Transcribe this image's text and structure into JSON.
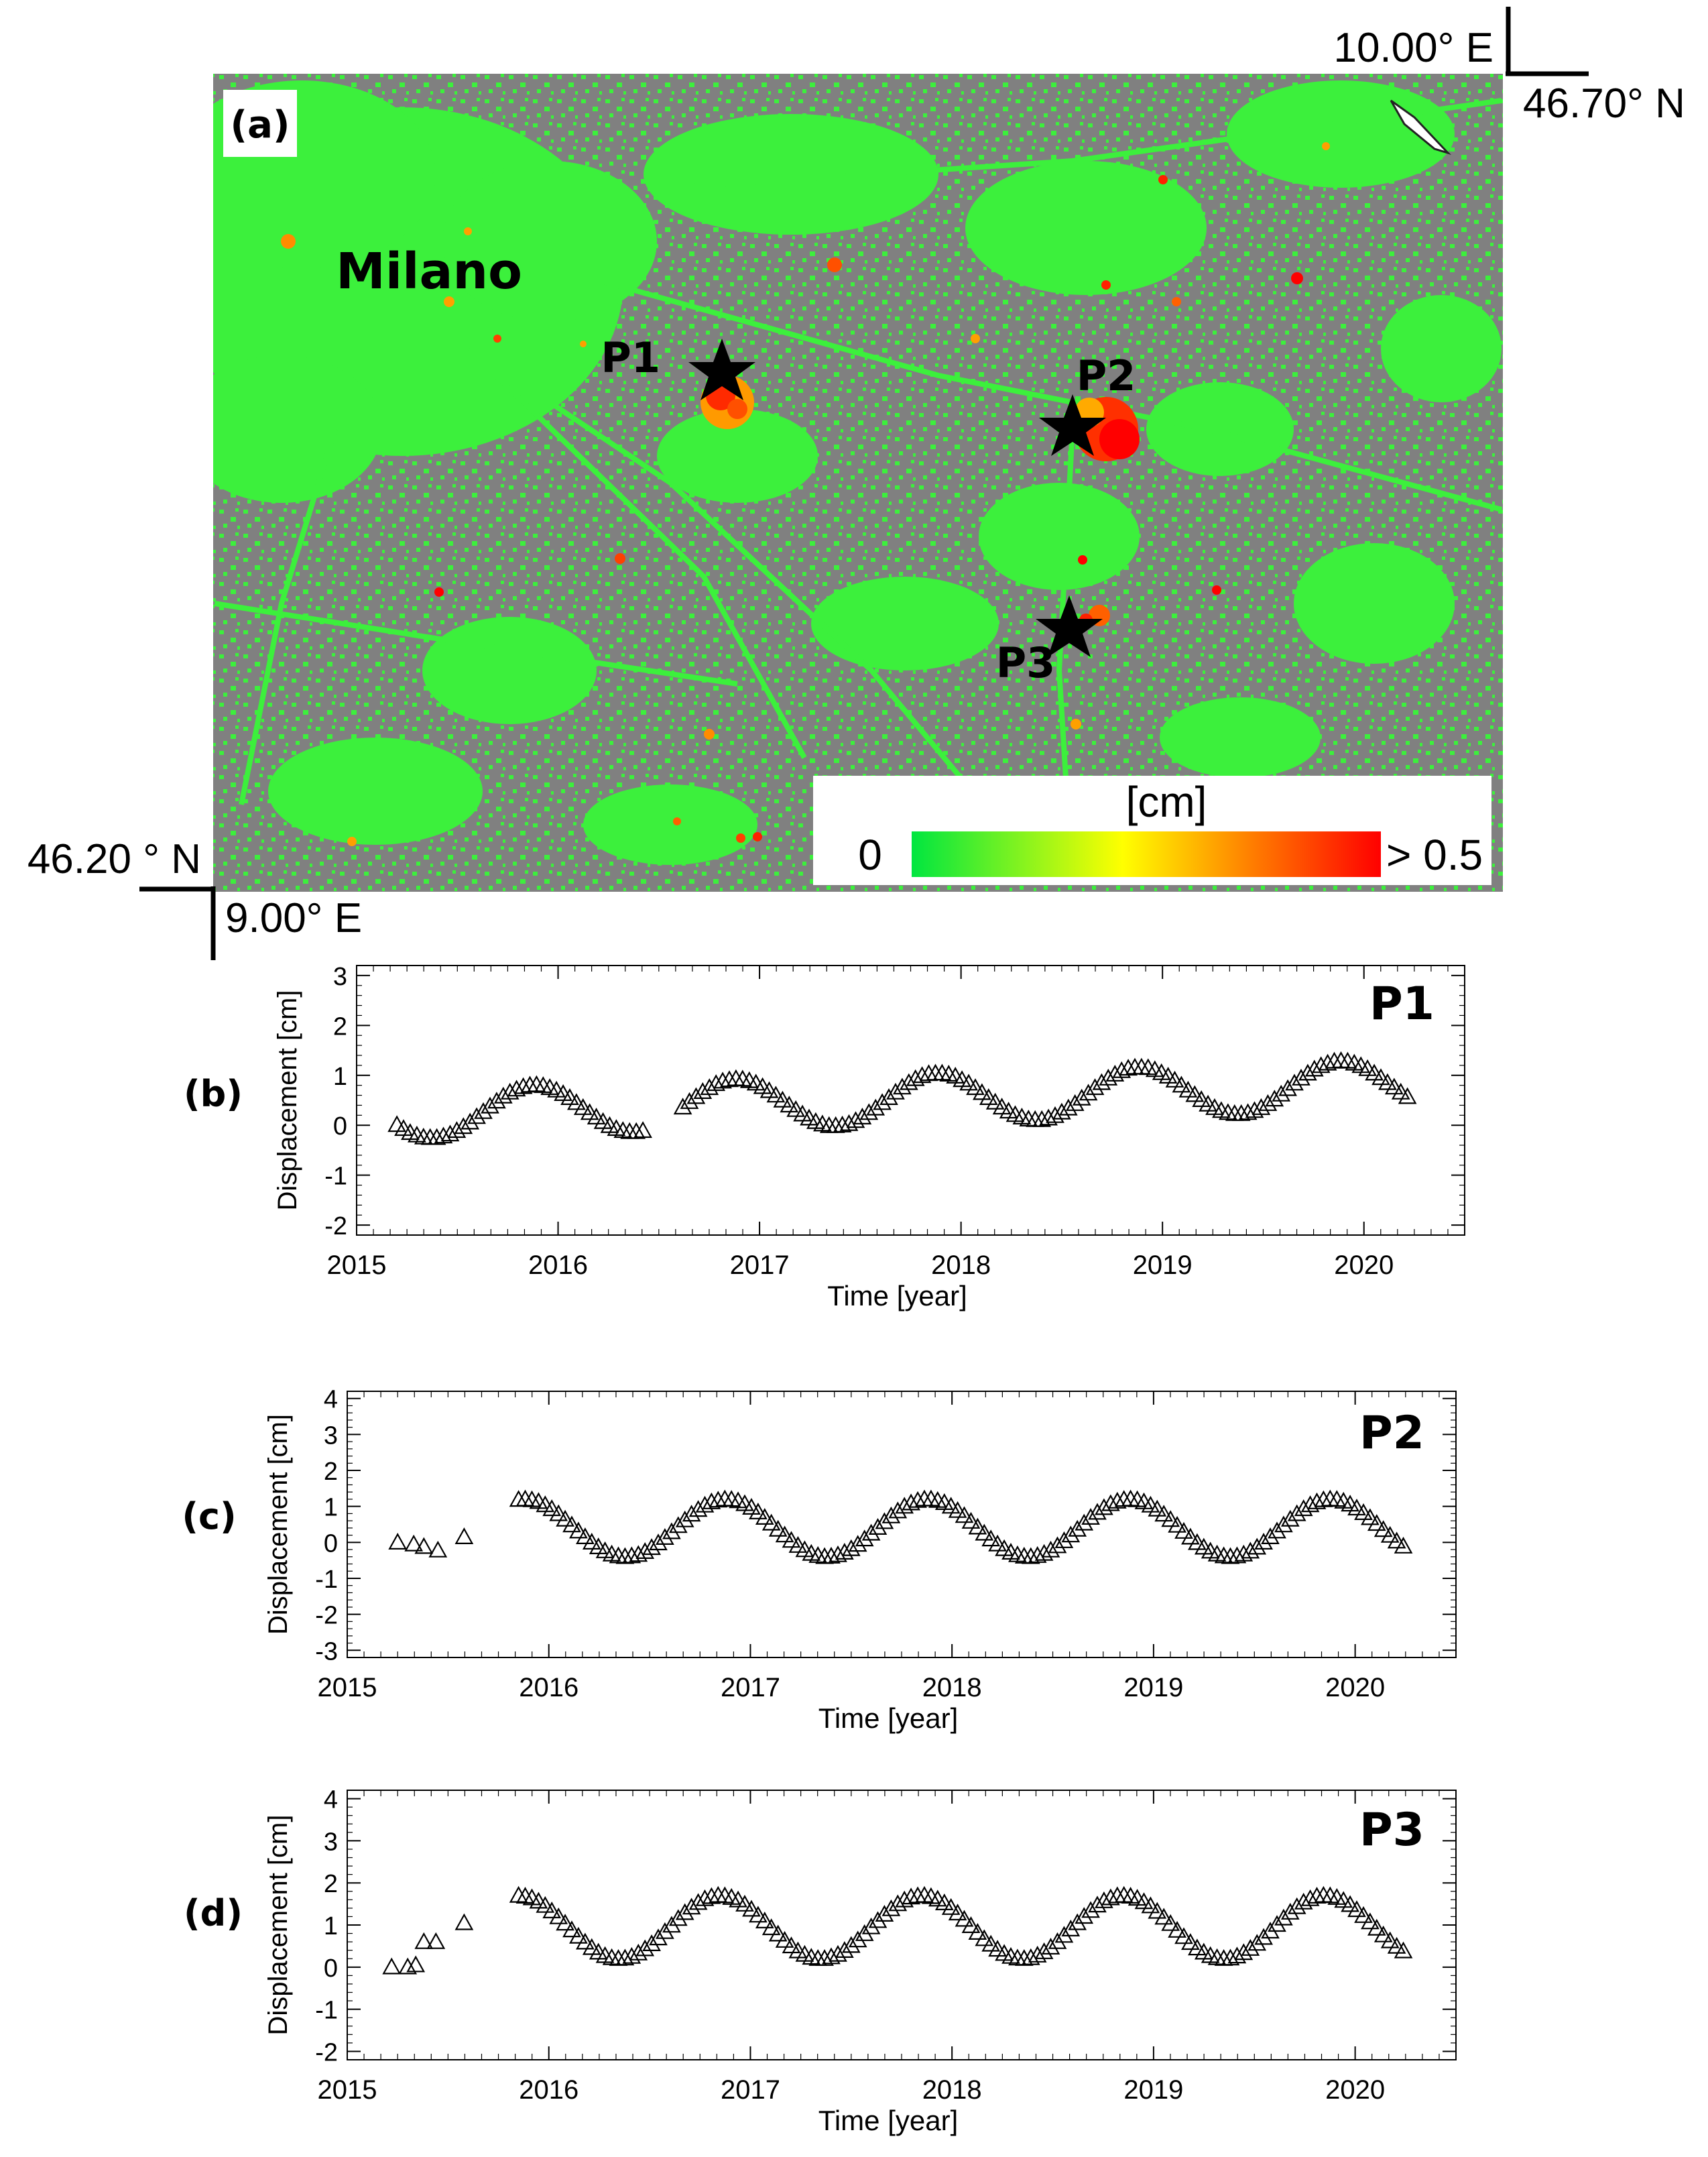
{
  "map": {
    "panel_label": "(a)",
    "city_label": "Milano",
    "corner_top_right": {
      "lon": "10.00° E",
      "lat": "46.70° N"
    },
    "corner_bottom_left": {
      "lat": "46.20 ° N",
      "lon": "9.00° E"
    },
    "points": [
      {
        "name": "P1"
      },
      {
        "name": "P2"
      },
      {
        "name": "P3"
      }
    ],
    "colorbar": {
      "unit": "[cm]",
      "min_label": "0",
      "max_label": "> 0.5",
      "colors": [
        "#00e640",
        "#ffff00",
        "#ff8000",
        "#ff0000"
      ]
    },
    "colors": {
      "ground": "#808080",
      "stable": "#3cf03c",
      "star": "#000000"
    }
  },
  "chart_data": [
    {
      "type": "scatter",
      "panel_label": "(b)",
      "title": "P1",
      "xlabel": "Time [year]",
      "ylabel": "Displacement [cm]",
      "xlim": [
        2015,
        2020.5
      ],
      "ylim": [
        -2.2,
        3.2
      ],
      "xticks": [
        "2015",
        "2016",
        "2017",
        "2018",
        "2019",
        "2020"
      ],
      "yticks": [
        "3",
        "2",
        "1",
        "0",
        "-1",
        "-2"
      ],
      "marker": "open-triangle",
      "series": [
        {
          "name": "P1",
          "x": [],
          "y": [],
          "curve": {
            "t_start": 2015.2,
            "t_end": 2020.24,
            "step": 0.033,
            "gap_start": 2016.45,
            "gap_end": 2016.6,
            "offset": 0.2,
            "trend": 0.12,
            "amplitude": 0.5,
            "peak_phase": 0.88
          }
        }
      ]
    },
    {
      "type": "scatter",
      "panel_label": "(c)",
      "title": "P2",
      "xlabel": "Time [year]",
      "ylabel": "Displacement [cm]",
      "xlim": [
        2015,
        2020.5
      ],
      "ylim": [
        -3.2,
        4.2
      ],
      "xticks": [
        "2015",
        "2016",
        "2017",
        "2018",
        "2019",
        "2020"
      ],
      "yticks": [
        "4",
        "3",
        "2",
        "1",
        "0",
        "-1",
        "-2",
        "-3"
      ],
      "marker": "open-triangle",
      "series": [
        {
          "name": "P2",
          "x": [
            2015.25,
            2015.33,
            2015.38,
            2015.45,
            2015.58
          ],
          "y": [
            0.0,
            -0.05,
            -0.12,
            -0.22,
            0.15
          ],
          "curve": {
            "t_start": 2015.85,
            "t_end": 2020.24,
            "step": 0.033,
            "gap_start": 9999,
            "gap_end": 9999,
            "offset": 0.4,
            "trend": 0.0,
            "amplitude": 0.8,
            "peak_phase": 0.88
          }
        }
      ]
    },
    {
      "type": "scatter",
      "panel_label": "(d)",
      "title": "P3",
      "xlabel": "Time [year]",
      "ylabel": "Displacement [cm]",
      "xlim": [
        2015,
        2020.5
      ],
      "ylim": [
        -2.2,
        4.2
      ],
      "xticks": [
        "2015",
        "2016",
        "2017",
        "2018",
        "2019",
        "2020"
      ],
      "yticks": [
        "4",
        "3",
        "2",
        "1",
        "0",
        "-1",
        "-2"
      ],
      "marker": "open-triangle",
      "series": [
        {
          "name": "P3",
          "x": [
            2015.22,
            2015.3,
            2015.34,
            2015.38,
            2015.44,
            2015.58
          ],
          "y": [
            0.0,
            0.0,
            0.05,
            0.6,
            0.6,
            1.05
          ],
          "curve": {
            "t_start": 2015.85,
            "t_end": 2020.24,
            "step": 0.033,
            "gap_start": 9999,
            "gap_end": 9999,
            "offset": 0.95,
            "trend": 0.0,
            "amplitude": 0.75,
            "peak_phase": 0.85
          }
        }
      ]
    }
  ]
}
